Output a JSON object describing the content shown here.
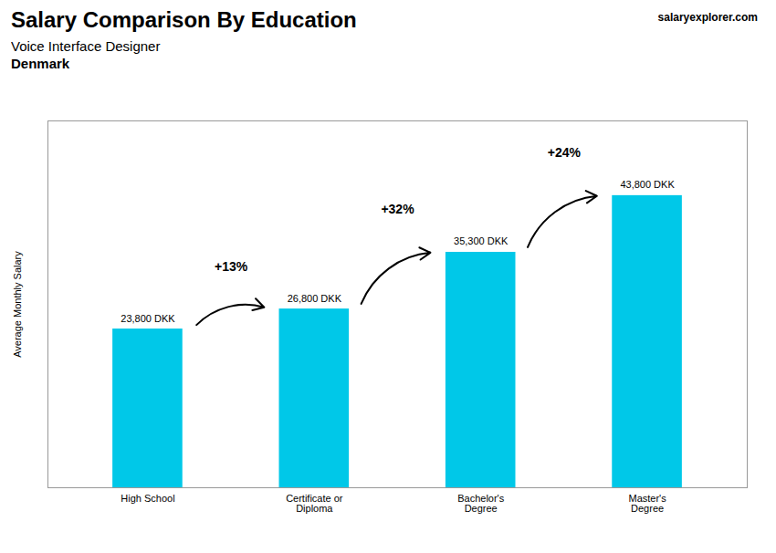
{
  "chart_data": {
    "type": "bar",
    "title": "Salary Comparison By Education",
    "subtitle": [
      "Voice Interface Designer",
      "Denmark"
    ],
    "source": "salaryexplorer.com",
    "categories": [
      "High School",
      "Certificate or\nDiploma",
      "Bachelor's\nDegree",
      "Master's\nDegree"
    ],
    "values": [
      23800,
      26800,
      35300,
      43800
    ],
    "value_labels": [
      "23,800 DKK",
      "26,800 DKK",
      "35,300 DKK",
      "43,800 DKK"
    ],
    "data_labels": true,
    "annotations": [
      "+13%",
      "+32%",
      "+24%"
    ],
    "ylabel": "Average Monthly Salary",
    "ylim": [
      0,
      55000
    ],
    "tick_labels": "x",
    "color": "#00c8e8",
    "grid": false
  }
}
